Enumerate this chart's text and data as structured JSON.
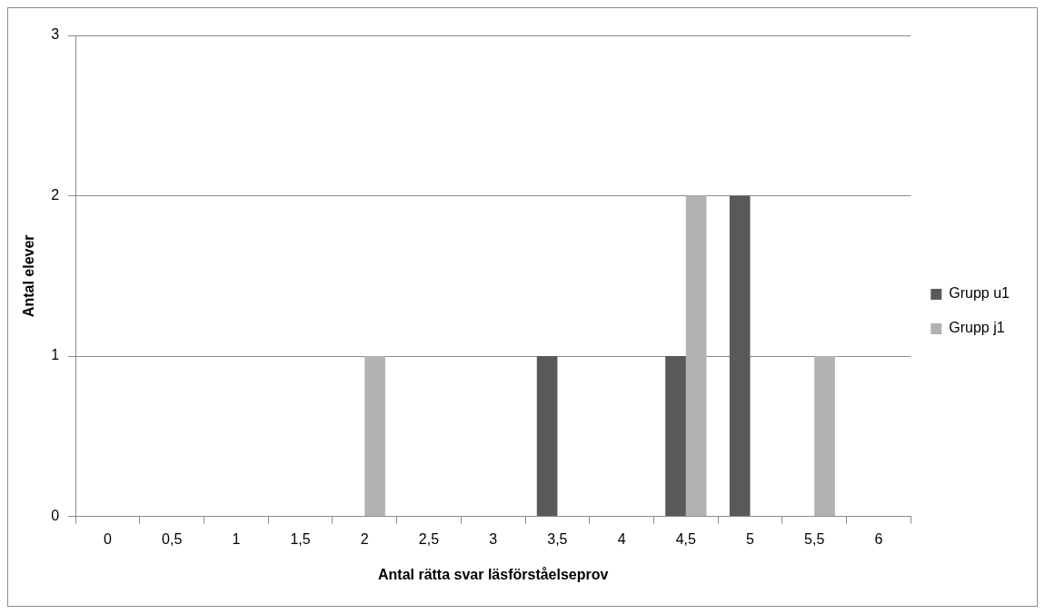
{
  "chart_data": {
    "type": "bar",
    "xlabel": "Antal rätta svar läsförståelseprov",
    "ylabel": "Antal elever",
    "categories": [
      "0",
      "0,5",
      "1",
      "1,5",
      "2",
      "2,5",
      "3",
      "3,5",
      "4",
      "4,5",
      "5",
      "5,5",
      "6"
    ],
    "series": [
      {
        "name": "Grupp u1",
        "color": "#595959",
        "values": [
          0,
          0,
          0,
          0,
          0,
          0,
          0,
          1,
          0,
          1,
          2,
          0,
          0
        ]
      },
      {
        "name": "Grupp j1",
        "color": "#b2b2b2",
        "values": [
          0,
          0,
          0,
          0,
          1,
          0,
          0,
          0,
          0,
          2,
          0,
          1,
          0
        ]
      }
    ],
    "ylim": [
      0,
      3
    ],
    "yticks": [
      0,
      1,
      2,
      3
    ],
    "grid": "y",
    "legend": "right"
  }
}
